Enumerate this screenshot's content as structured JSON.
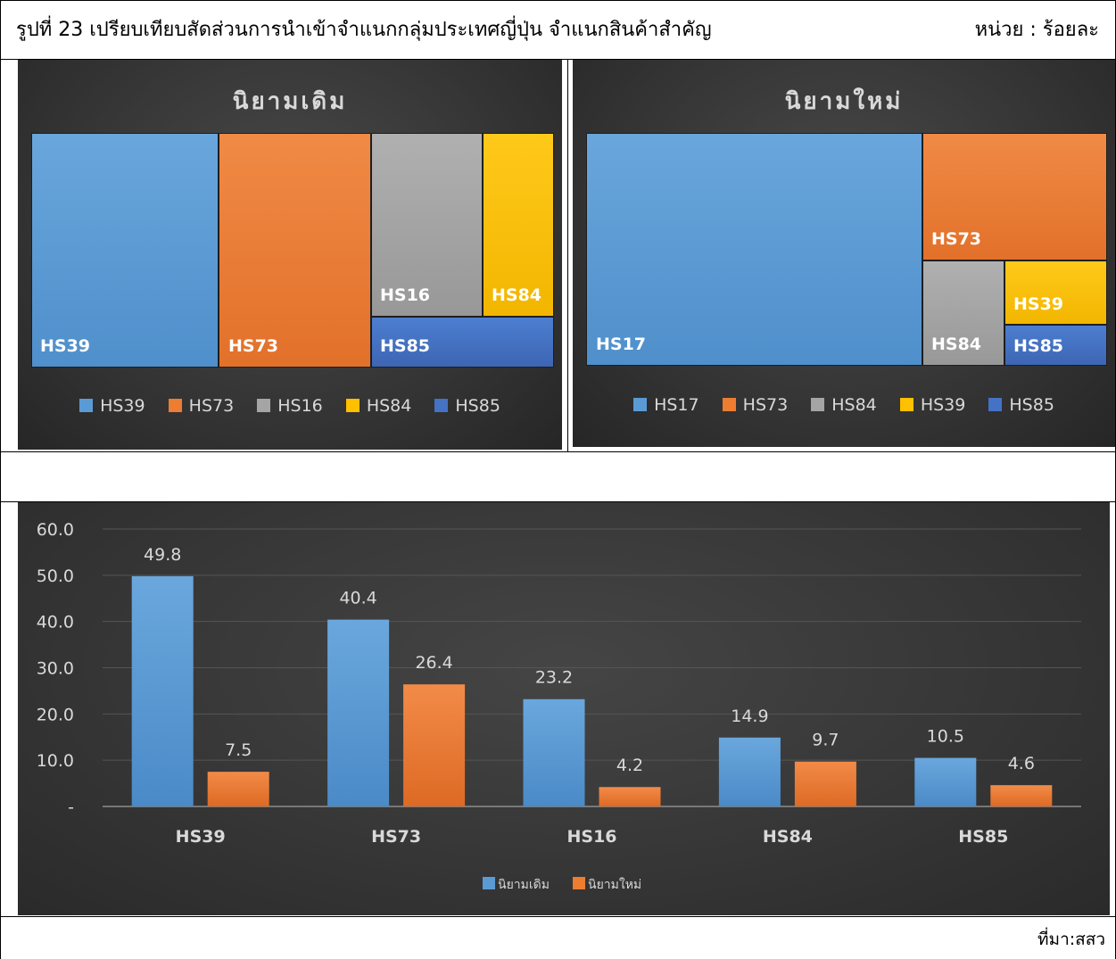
{
  "caption": {
    "title": "รูปที่ 23 เปรียบเทียบสัดส่วนการนำเข้าจำแนกกลุ่มประเทศญี่ปุ่น  จำแนกสินค้าสำคัญ",
    "unit": "หน่วย : ร้อยละ"
  },
  "colors": {
    "blue": "#5b9bd5",
    "orange": "#ed7d31",
    "gray": "#a5a5a5",
    "gold": "#ffc000",
    "navy": "#4472c4",
    "panel_bg": "#3a3a3a",
    "text_light": "#d9d9d9"
  },
  "source": "ที่มา:สสว",
  "chart_data": [
    {
      "type": "treemap",
      "title": "นิยามเดิม",
      "items": [
        {
          "name": "HS39",
          "color": "#5b9bd5"
        },
        {
          "name": "HS73",
          "color": "#ed7d31"
        },
        {
          "name": "HS16",
          "color": "#a5a5a5"
        },
        {
          "name": "HS84",
          "color": "#ffc000"
        },
        {
          "name": "HS85",
          "color": "#4472c4"
        }
      ],
      "legend": [
        "HS39",
        "HS73",
        "HS16",
        "HS84",
        "HS85"
      ],
      "legend_position": "bottom"
    },
    {
      "type": "treemap",
      "title": "นิยามใหม่",
      "items": [
        {
          "name": "HS17",
          "color": "#5b9bd5"
        },
        {
          "name": "HS73",
          "color": "#ed7d31"
        },
        {
          "name": "HS84",
          "color": "#a5a5a5"
        },
        {
          "name": "HS39",
          "color": "#ffc000"
        },
        {
          "name": "HS85",
          "color": "#4472c4"
        }
      ],
      "legend": [
        "HS17",
        "HS73",
        "HS84",
        "HS39",
        "HS85"
      ],
      "legend_position": "bottom"
    },
    {
      "type": "bar",
      "categories": [
        "HS39",
        "HS73",
        "HS16",
        "HS84",
        "HS85"
      ],
      "series": [
        {
          "name": "นิยามเดิม",
          "values": [
            49.8,
            40.4,
            23.2,
            14.9,
            10.5
          ],
          "color": "#5b9bd5"
        },
        {
          "name": "นิยามใหม่",
          "values": [
            7.5,
            26.4,
            4.2,
            9.7,
            4.6
          ],
          "color": "#ed7d31"
        }
      ],
      "ylim": [
        0,
        60
      ],
      "yticks": [
        "-",
        "10.0",
        "20.0",
        "30.0",
        "40.0",
        "50.0",
        "60.0"
      ],
      "grid": true,
      "legend_position": "bottom"
    }
  ]
}
